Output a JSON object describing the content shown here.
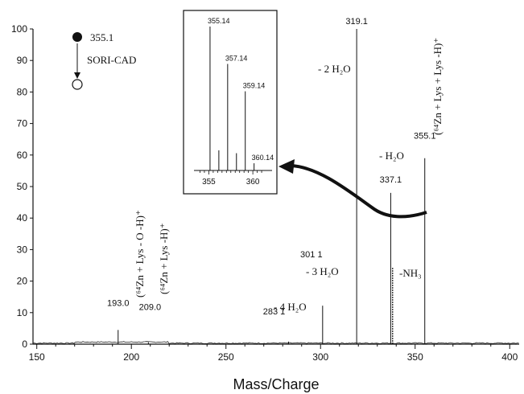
{
  "chart_data": {
    "type": "bar",
    "xlabel": "Mass/Charge",
    "ylabel": "",
    "xlim": [
      148,
      405
    ],
    "ylim": [
      0,
      100
    ],
    "x_ticks": [
      150,
      200,
      250,
      300,
      350,
      400
    ],
    "y_ticks": [
      0,
      10,
      20,
      30,
      40,
      50,
      60,
      70,
      80,
      90,
      100
    ],
    "peaks": [
      {
        "mz": 193.0,
        "intensity": 4.5,
        "label": "193.0"
      },
      {
        "mz": 209.0,
        "intensity": 0.6,
        "label": "209.0"
      },
      {
        "mz": 283.1,
        "intensity": 0.8,
        "label": "283 1"
      },
      {
        "mz": 301.1,
        "intensity": 12.2,
        "label": "301 1"
      },
      {
        "mz": 319.1,
        "intensity": 100,
        "label": "319.1"
      },
      {
        "mz": 337.1,
        "intensity": 48,
        "label": "337.1"
      },
      {
        "mz": 338.1,
        "intensity": 24.5,
        "label": ""
      },
      {
        "mz": 355.1,
        "intensity": 59,
        "label": "355.1"
      }
    ],
    "annotations": {
      "zn_lys_o_h": "(⁶⁴Zn + Lys - O -H)⁺",
      "zn_lys_h": "(⁶⁴Zn + Lys -H)⁺",
      "minus_4h2o": "- 4 H₂O",
      "minus_3h2o": "- 3 H₂O",
      "minus_2h2o": "- 2 H₂O",
      "minus_h2o": "- H₂O",
      "minus_nh3": "-NH₃",
      "parent_complex": "(⁶⁴Zn + Lys + Lys -H)⁺"
    },
    "legend": {
      "parent_label": "355.1",
      "method": "SORI-CAD"
    },
    "inset": {
      "xlim": [
        353.5,
        362
      ],
      "ylim": [
        0,
        100
      ],
      "x_ticks": [
        355,
        360
      ],
      "peaks": [
        {
          "mz": 355.14,
          "intensity": 100,
          "label": "355.14"
        },
        {
          "mz": 356.14,
          "intensity": 14,
          "label": ""
        },
        {
          "mz": 357.14,
          "intensity": 74,
          "label": "357.14"
        },
        {
          "mz": 358.14,
          "intensity": 12,
          "label": ""
        },
        {
          "mz": 359.14,
          "intensity": 55,
          "label": "359.14"
        },
        {
          "mz": 360.14,
          "intensity": 5,
          "label": "360.14"
        }
      ]
    }
  }
}
